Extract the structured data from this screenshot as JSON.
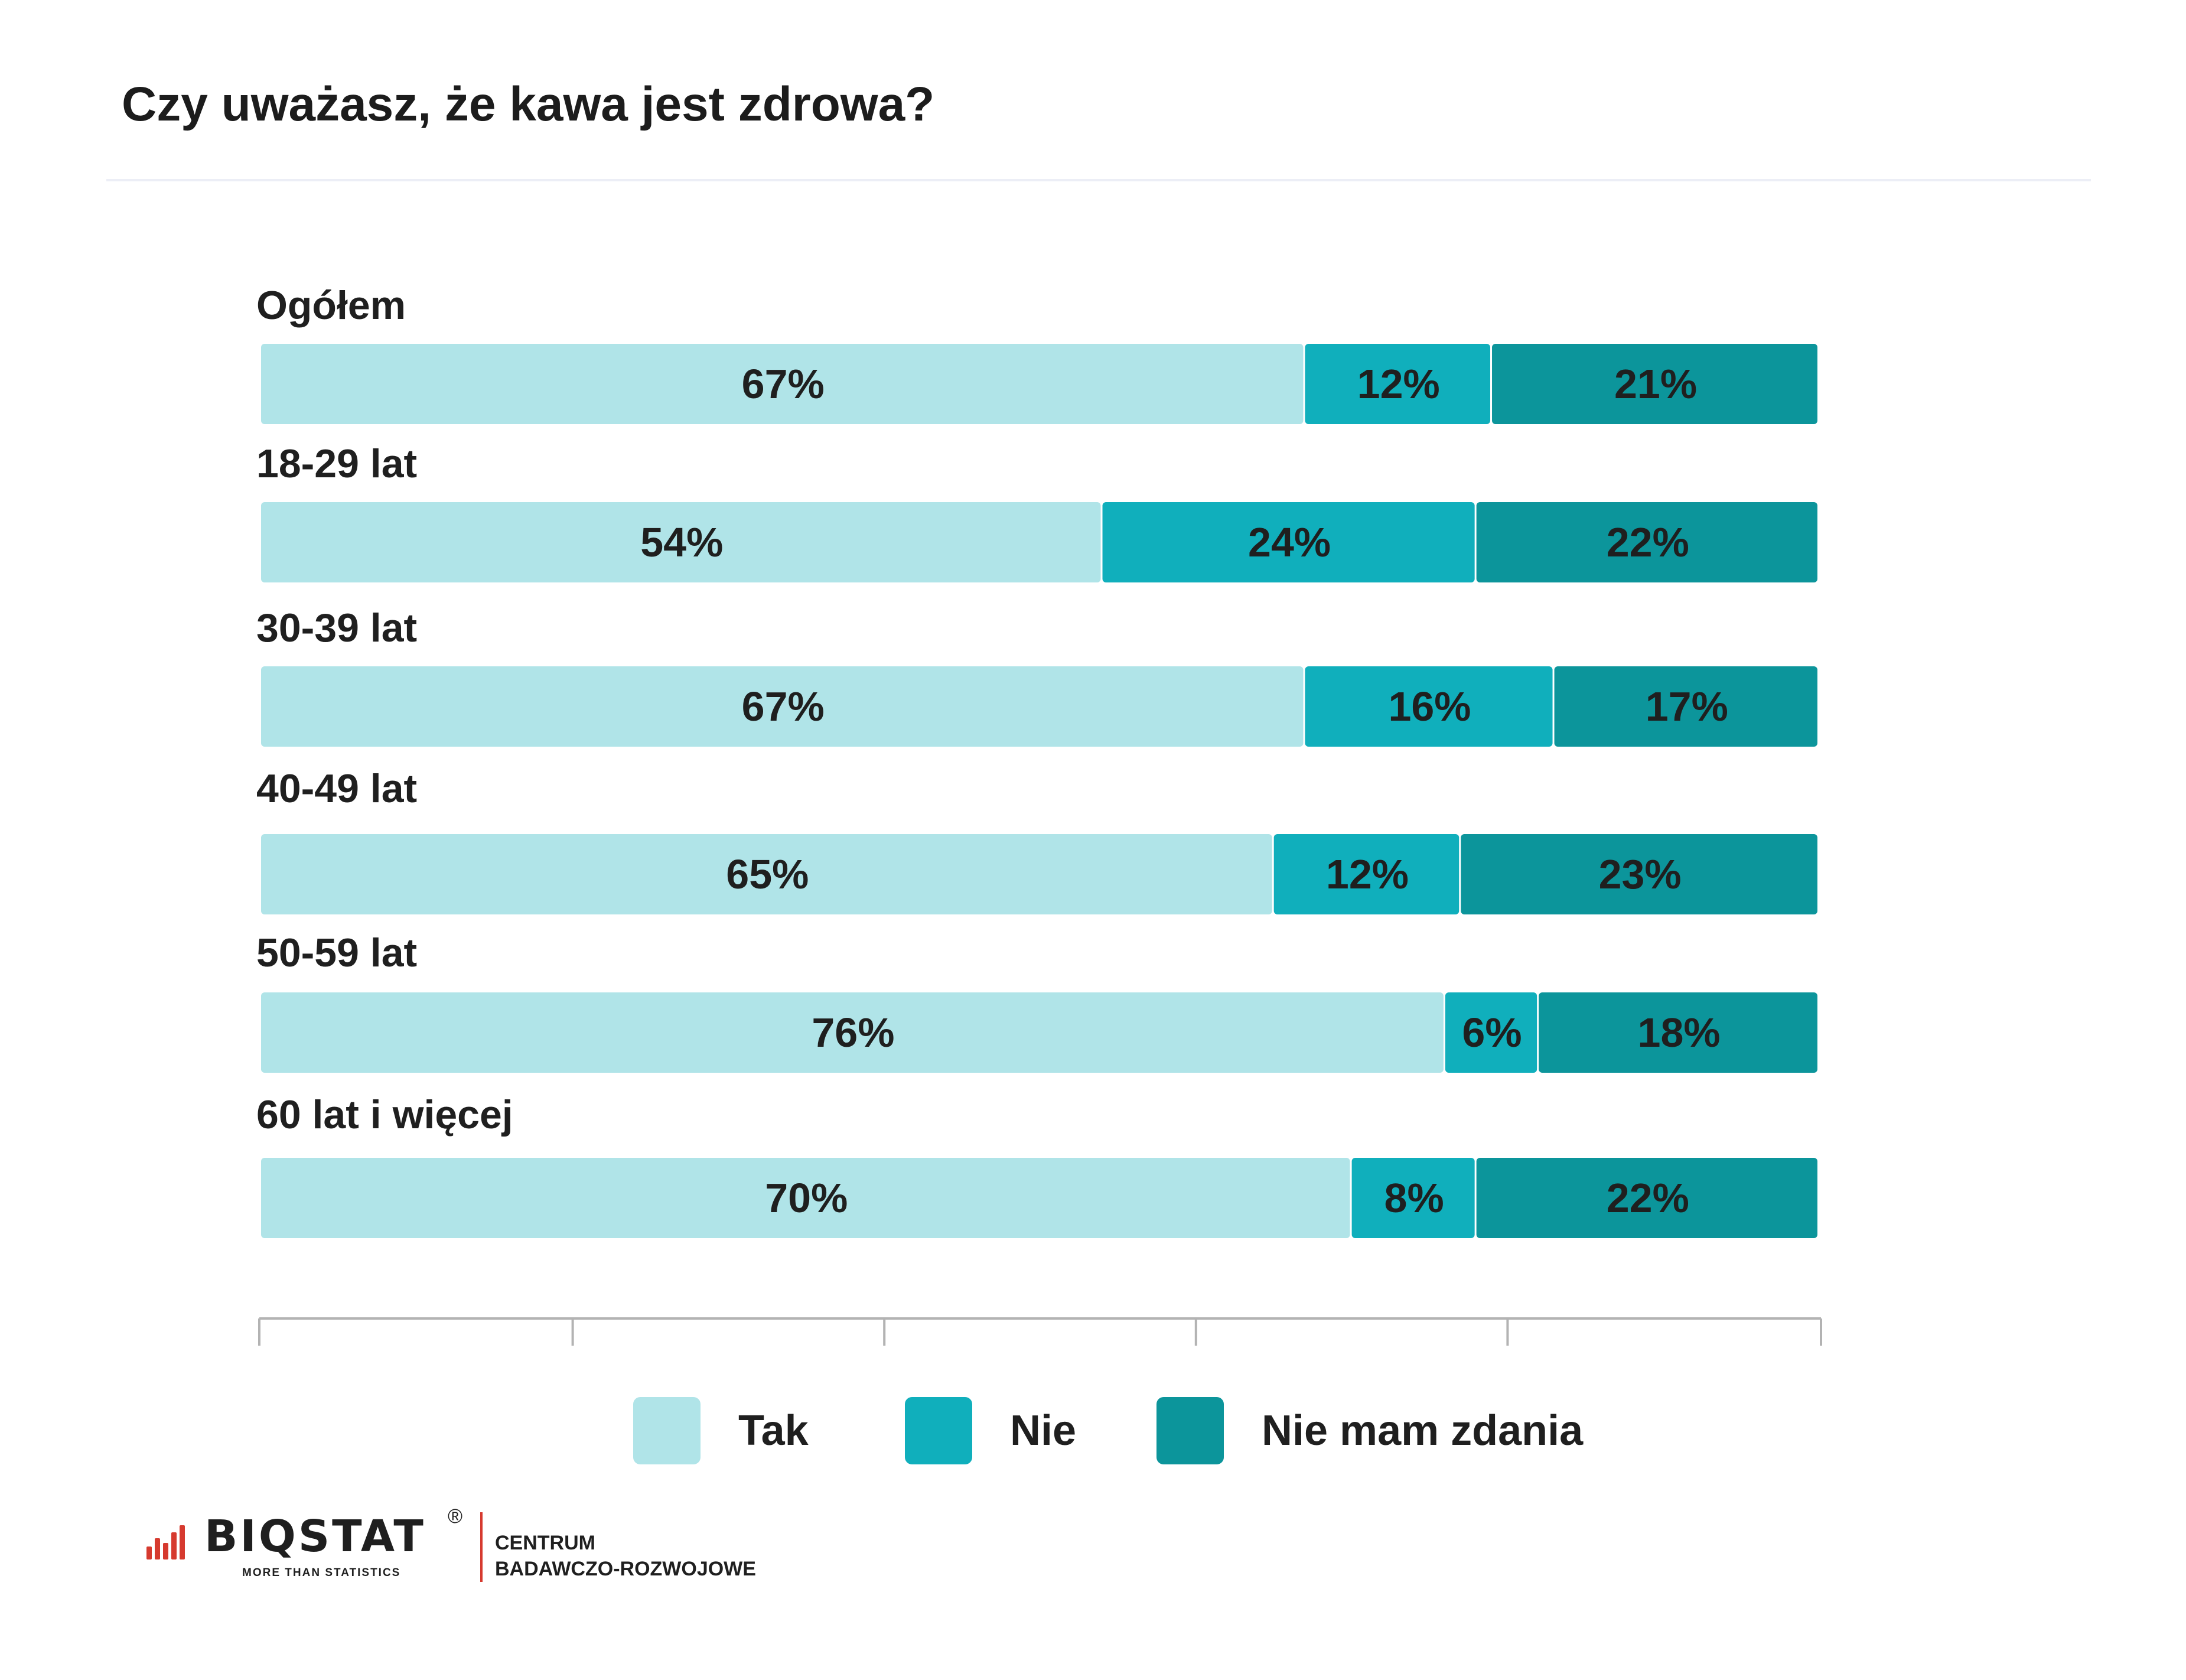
{
  "title": "Czy uważasz, że kawa jest zdrowa?",
  "colors": {
    "Tak": "#b0e4e8",
    "Nie": "#10afbc",
    "Nie mam zdania": "#0c959b",
    "axis": "#b3b3b3",
    "brand": "#d63a2f"
  },
  "chart_data": {
    "type": "bar",
    "orientation": "horizontal",
    "stacked": true,
    "categories": [
      "Ogółem",
      "18-29 lat",
      "30-39 lat",
      "40-49 lat",
      "50-59 lat",
      "60 lat i więcej"
    ],
    "series": [
      {
        "name": "Tak",
        "values": [
          67,
          54,
          67,
          65,
          76,
          70
        ],
        "labels": [
          "67%",
          "54%",
          "67%",
          "65%",
          "76%",
          "70%"
        ]
      },
      {
        "name": "Nie",
        "values": [
          12,
          24,
          16,
          12,
          6,
          8
        ],
        "labels": [
          "12%",
          "24%",
          "16%",
          "12%",
          "6%",
          "8%"
        ]
      },
      {
        "name": "Nie mam zdania",
        "values": [
          21,
          22,
          17,
          23,
          18,
          22
        ],
        "labels": [
          "21%",
          "22%",
          "17%",
          "23%",
          "18%",
          "22%"
        ]
      }
    ],
    "xlim": [
      0,
      100
    ],
    "legend_position": "bottom",
    "grid": false
  },
  "footer": {
    "brand": "BIQSTAT",
    "registered": "®",
    "tagline": "MORE THAN STATISTICS",
    "subtitle_line1": "CENTRUM",
    "subtitle_line2": "BADAWCZO-ROZWOJOWE"
  }
}
